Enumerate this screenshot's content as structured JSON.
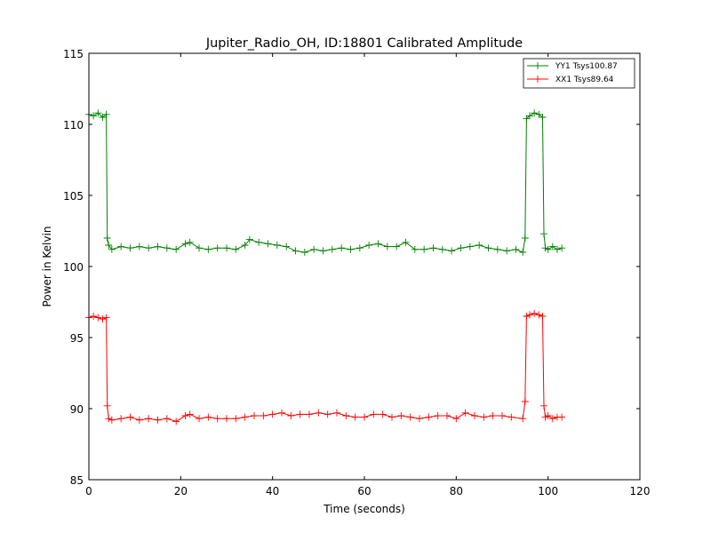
{
  "chart_data": {
    "type": "line",
    "title": "Jupiter_Radio_OH, ID:18801 Calibrated Amplitude",
    "xlabel": "Time (seconds)",
    "ylabel": "Power in Kelvin",
    "xlim": [
      0,
      120
    ],
    "ylim": [
      85,
      115
    ],
    "xticks": [
      "0",
      "20",
      "40",
      "60",
      "80",
      "100",
      "120"
    ],
    "yticks": [
      "85",
      "90",
      "95",
      "100",
      "105",
      "110",
      "115"
    ],
    "grid": false,
    "legend_position": "top-right",
    "marker": "+",
    "series": [
      {
        "name": "YY1 Tsys100.87",
        "color": "#008000",
        "points": [
          [
            0,
            110.7
          ],
          [
            1,
            110.6
          ],
          [
            2,
            110.8
          ],
          [
            3,
            110.5
          ],
          [
            3.8,
            110.7
          ],
          [
            4.0,
            102.0
          ],
          [
            4.3,
            101.5
          ],
          [
            5,
            101.2
          ],
          [
            7,
            101.4
          ],
          [
            9,
            101.3
          ],
          [
            11,
            101.4
          ],
          [
            13,
            101.3
          ],
          [
            15,
            101.4
          ],
          [
            17,
            101.3
          ],
          [
            19,
            101.2
          ],
          [
            21,
            101.6
          ],
          [
            22,
            101.7
          ],
          [
            24,
            101.3
          ],
          [
            26,
            101.2
          ],
          [
            28,
            101.3
          ],
          [
            30,
            101.3
          ],
          [
            32,
            101.2
          ],
          [
            34,
            101.5
          ],
          [
            35,
            101.9
          ],
          [
            37,
            101.7
          ],
          [
            39,
            101.6
          ],
          [
            41,
            101.5
          ],
          [
            43,
            101.4
          ],
          [
            45,
            101.1
          ],
          [
            47,
            101.0
          ],
          [
            49,
            101.2
          ],
          [
            51,
            101.1
          ],
          [
            53,
            101.2
          ],
          [
            55,
            101.3
          ],
          [
            57,
            101.2
          ],
          [
            59,
            101.3
          ],
          [
            61,
            101.5
          ],
          [
            63,
            101.6
          ],
          [
            65,
            101.4
          ],
          [
            67,
            101.4
          ],
          [
            69,
            101.7
          ],
          [
            71,
            101.2
          ],
          [
            73,
            101.2
          ],
          [
            75,
            101.3
          ],
          [
            77,
            101.2
          ],
          [
            79,
            101.1
          ],
          [
            81,
            101.3
          ],
          [
            83,
            101.4
          ],
          [
            85,
            101.5
          ],
          [
            87,
            101.3
          ],
          [
            89,
            101.2
          ],
          [
            91,
            101.1
          ],
          [
            93,
            101.2
          ],
          [
            94.5,
            101.0
          ],
          [
            95.0,
            102.0
          ],
          [
            95.3,
            110.4
          ],
          [
            96,
            110.6
          ],
          [
            97,
            110.8
          ],
          [
            98,
            110.7
          ],
          [
            98.8,
            110.5
          ],
          [
            99.1,
            102.3
          ],
          [
            99.4,
            101.3
          ],
          [
            100,
            101.2
          ],
          [
            101,
            101.4
          ],
          [
            102,
            101.2
          ],
          [
            103,
            101.3
          ]
        ]
      },
      {
        "name": "XX1 Tsys89.64",
        "color": "#ff0000",
        "points": [
          [
            0,
            96.4
          ],
          [
            1,
            96.5
          ],
          [
            2,
            96.4
          ],
          [
            3,
            96.3
          ],
          [
            3.8,
            96.4
          ],
          [
            4.0,
            90.2
          ],
          [
            4.3,
            89.3
          ],
          [
            5,
            89.2
          ],
          [
            7,
            89.3
          ],
          [
            9,
            89.4
          ],
          [
            11,
            89.2
          ],
          [
            13,
            89.3
          ],
          [
            15,
            89.2
          ],
          [
            17,
            89.3
          ],
          [
            19,
            89.1
          ],
          [
            21,
            89.5
          ],
          [
            22,
            89.6
          ],
          [
            24,
            89.3
          ],
          [
            26,
            89.4
          ],
          [
            28,
            89.3
          ],
          [
            30,
            89.3
          ],
          [
            32,
            89.3
          ],
          [
            34,
            89.4
          ],
          [
            36,
            89.5
          ],
          [
            38,
            89.5
          ],
          [
            40,
            89.6
          ],
          [
            42,
            89.7
          ],
          [
            44,
            89.5
          ],
          [
            46,
            89.6
          ],
          [
            48,
            89.6
          ],
          [
            50,
            89.7
          ],
          [
            52,
            89.6
          ],
          [
            54,
            89.7
          ],
          [
            56,
            89.5
          ],
          [
            58,
            89.4
          ],
          [
            60,
            89.4
          ],
          [
            62,
            89.6
          ],
          [
            64,
            89.6
          ],
          [
            66,
            89.4
          ],
          [
            68,
            89.5
          ],
          [
            70,
            89.4
          ],
          [
            72,
            89.3
          ],
          [
            74,
            89.4
          ],
          [
            76,
            89.5
          ],
          [
            78,
            89.5
          ],
          [
            80,
            89.3
          ],
          [
            82,
            89.7
          ],
          [
            84,
            89.5
          ],
          [
            86,
            89.4
          ],
          [
            88,
            89.5
          ],
          [
            90,
            89.5
          ],
          [
            92,
            89.4
          ],
          [
            94.5,
            89.3
          ],
          [
            95.0,
            90.5
          ],
          [
            95.3,
            96.5
          ],
          [
            96,
            96.6
          ],
          [
            97,
            96.7
          ],
          [
            98,
            96.6
          ],
          [
            98.8,
            96.5
          ],
          [
            99.1,
            90.2
          ],
          [
            99.4,
            89.4
          ],
          [
            100,
            89.5
          ],
          [
            101,
            89.3
          ],
          [
            102,
            89.4
          ],
          [
            103,
            89.4
          ]
        ]
      }
    ]
  }
}
